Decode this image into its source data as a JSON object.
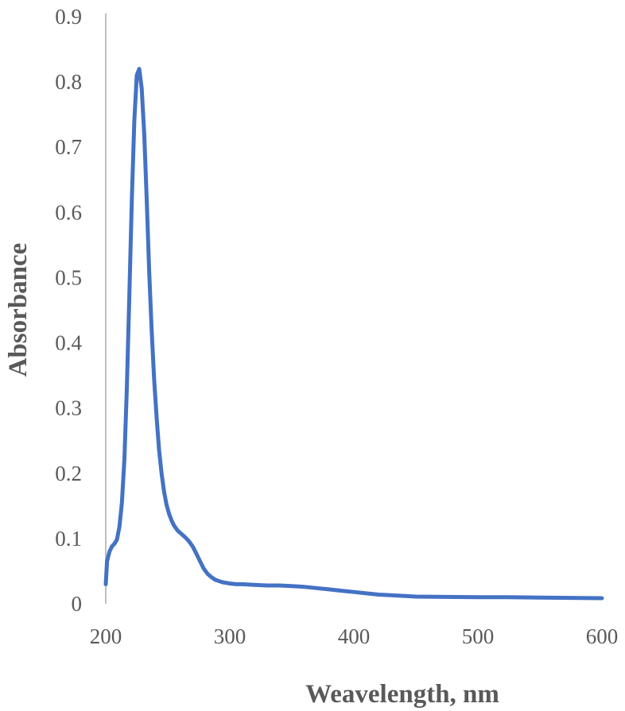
{
  "chart_data": {
    "type": "line",
    "title": "",
    "xlabel": "Weavelength, nm",
    "ylabel": "Absorbance",
    "xlim": [
      200,
      600
    ],
    "ylim": [
      0,
      0.9
    ],
    "x_ticks": [
      "200",
      "300",
      "400",
      "500",
      "600"
    ],
    "y_ticks": [
      "0",
      "0.1",
      "0.2",
      "0.3",
      "0.4",
      "0.5",
      "0.6",
      "0.7",
      "0.8",
      "0.9"
    ],
    "grid": false,
    "legend": "none",
    "line_color": "#4472C4",
    "axis_color": "#BFBFBF",
    "series": [
      {
        "x": [
          200,
          201,
          203,
          205,
          207,
          209,
          211,
          213,
          215,
          217,
          219,
          221,
          223,
          225,
          227,
          229,
          231,
          233,
          235,
          237,
          239,
          241,
          243,
          245,
          247,
          249,
          251,
          253,
          255,
          258,
          261,
          264,
          267,
          270,
          273,
          276,
          279,
          282,
          285,
          288,
          291,
          294,
          297,
          300,
          305,
          310,
          320,
          330,
          340,
          350,
          360,
          370,
          380,
          390,
          400,
          410,
          420,
          430,
          440,
          450,
          475,
          500,
          525,
          550,
          575,
          600
        ],
        "y": [
          0.03,
          0.065,
          0.08,
          0.088,
          0.092,
          0.098,
          0.118,
          0.155,
          0.22,
          0.33,
          0.47,
          0.62,
          0.74,
          0.81,
          0.82,
          0.79,
          0.72,
          0.62,
          0.51,
          0.42,
          0.345,
          0.285,
          0.235,
          0.2,
          0.172,
          0.152,
          0.138,
          0.128,
          0.12,
          0.112,
          0.107,
          0.102,
          0.096,
          0.088,
          0.077,
          0.065,
          0.054,
          0.046,
          0.041,
          0.037,
          0.035,
          0.033,
          0.032,
          0.031,
          0.03,
          0.03,
          0.029,
          0.028,
          0.028,
          0.027,
          0.026,
          0.024,
          0.022,
          0.02,
          0.018,
          0.016,
          0.014,
          0.013,
          0.012,
          0.011,
          0.0105,
          0.01,
          0.01,
          0.0095,
          0.009,
          0.0085
        ]
      }
    ]
  }
}
